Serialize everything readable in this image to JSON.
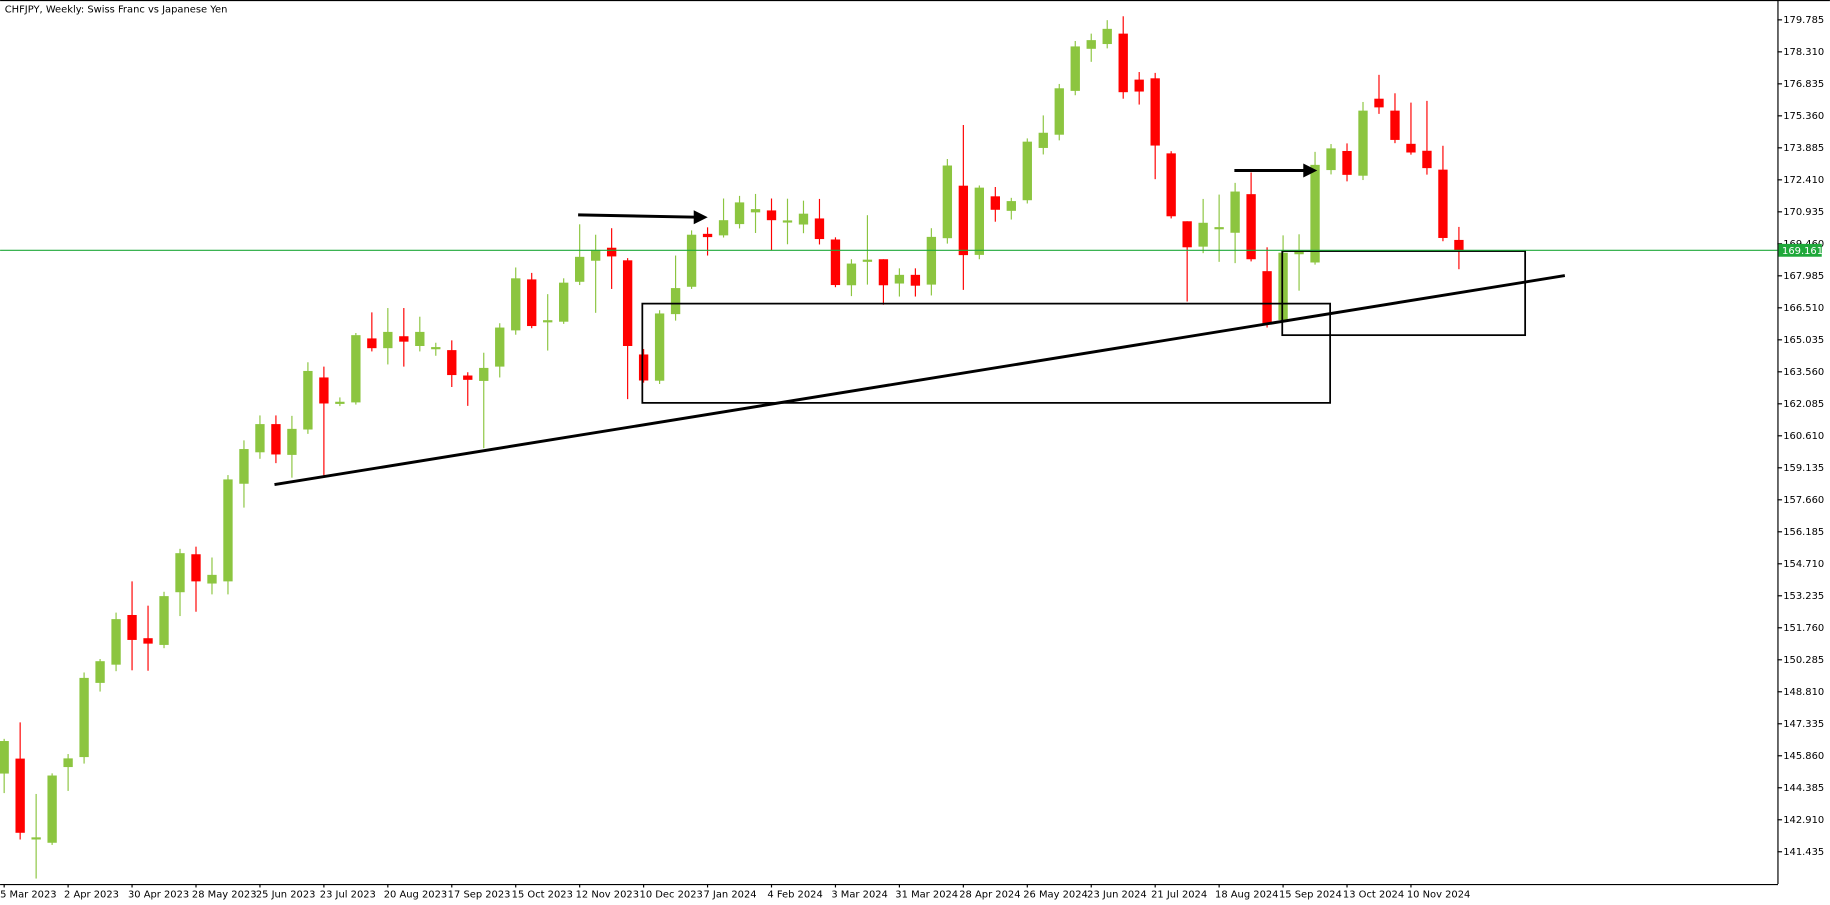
{
  "chart_data": {
    "type": "candlestick",
    "title": "CHFJPY, Weekly:  Swiss Franc vs Japanese Yen",
    "up_color": "#8cc540",
    "down_color": "#ff0000",
    "price_line": 169.161,
    "price_line_color": "#1fa83a",
    "categories": [
      "5 Mar 2023",
      null,
      null,
      null,
      "2 Apr 2023",
      null,
      null,
      null,
      "30 Apr 2023",
      null,
      null,
      null,
      "28 May 2023",
      null,
      null,
      null,
      "25 Jun 2023",
      null,
      null,
      null,
      "23 Jul 2023",
      null,
      null,
      null,
      "20 Aug 2023",
      null,
      null,
      null,
      "17 Sep 2023",
      null,
      null,
      null,
      "15 Oct 2023",
      null,
      null,
      null,
      "12 Nov 2023",
      null,
      null,
      null,
      "10 Dec 2023",
      null,
      null,
      null,
      "7 Jan 2024",
      null,
      null,
      null,
      "4 Feb 2024",
      null,
      null,
      null,
      "3 Mar 2024",
      null,
      null,
      null,
      "31 Mar 2024",
      null,
      null,
      null,
      "28 Apr 2024",
      null,
      null,
      null,
      "26 May 2024",
      null,
      null,
      null,
      "23 Jun 2024",
      null,
      null,
      null,
      "21 Jul 2024",
      null,
      null,
      null,
      "18 Aug 2024",
      null,
      null,
      null,
      "15 Sep 2024",
      null,
      null,
      null,
      "13 Oct 2024",
      null,
      null,
      null,
      "10 Nov 2024",
      null,
      null,
      null
    ],
    "open": [
      145.04,
      145.73,
      142.0,
      141.85,
      145.34,
      145.8,
      149.22,
      150.06,
      152.35,
      151.28,
      150.97,
      153.4,
      155.15,
      153.8,
      153.9,
      158.4,
      159.85,
      161.15,
      159.73,
      160.9,
      163.3,
      162.08,
      162.15,
      165.1,
      164.65,
      165.2,
      164.75,
      164.6,
      164.56,
      163.39,
      163.14,
      163.8,
      165.47,
      167.82,
      165.84,
      165.87,
      167.71,
      168.68,
      169.28,
      168.7,
      164.36,
      163.15,
      166.22,
      167.48,
      169.92,
      169.85,
      170.37,
      170.91,
      171.0,
      170.44,
      170.35,
      170.63,
      169.66,
      167.55,
      168.63,
      168.75,
      167.63,
      168.03,
      167.58,
      169.72,
      172.14,
      168.95,
      171.65,
      170.98,
      171.47,
      173.88,
      174.49,
      176.51,
      178.45,
      178.67,
      179.15,
      177.03,
      177.09,
      173.63,
      170.5,
      169.33,
      170.13,
      169.97,
      171.75,
      168.2,
      165.95,
      168.98,
      168.6,
      172.86,
      173.74,
      172.6,
      176.15,
      175.6,
      174.07,
      173.75,
      172.88,
      169.64
    ],
    "high": [
      146.64,
      147.4,
      144.1,
      145.05,
      145.94,
      149.7,
      150.32,
      152.46,
      153.9,
      152.78,
      153.42,
      155.4,
      155.5,
      155.0,
      158.8,
      160.4,
      161.55,
      161.55,
      161.53,
      164.0,
      163.8,
      162.38,
      165.35,
      166.3,
      166.5,
      166.5,
      166.1,
      164.9,
      165.01,
      163.54,
      164.44,
      165.8,
      168.37,
      168.12,
      167.14,
      167.87,
      170.36,
      169.88,
      170.18,
      168.8,
      164.61,
      166.4,
      168.92,
      170.08,
      170.22,
      171.55,
      171.67,
      171.76,
      171.55,
      171.54,
      171.45,
      171.53,
      169.76,
      168.75,
      170.78,
      168.75,
      168.33,
      168.33,
      170.18,
      173.37,
      174.94,
      172.15,
      172.08,
      171.58,
      174.32,
      175.38,
      176.83,
      178.81,
      179.15,
      179.77,
      179.95,
      177.38,
      177.34,
      173.73,
      170.5,
      171.53,
      171.73,
      172.27,
      172.75,
      169.3,
      169.85,
      169.9,
      173.7,
      174.06,
      174.09,
      176.0,
      177.25,
      176.4,
      175.97,
      176.05,
      173.98,
      170.24
    ],
    "low": [
      144.14,
      142.0,
      140.2,
      141.75,
      144.24,
      145.5,
      148.82,
      149.76,
      149.8,
      149.78,
      150.82,
      152.3,
      152.5,
      153.3,
      153.3,
      157.3,
      159.55,
      159.35,
      158.68,
      160.7,
      158.75,
      161.98,
      162.05,
      164.5,
      163.9,
      163.8,
      164.5,
      164.3,
      162.86,
      161.99,
      160.04,
      163.3,
      165.27,
      165.57,
      164.54,
      165.77,
      167.56,
      166.28,
      167.38,
      162.3,
      163.06,
      163.0,
      165.92,
      167.38,
      168.92,
      169.75,
      170.17,
      169.96,
      169.15,
      169.44,
      169.95,
      169.43,
      167.46,
      167.05,
      167.58,
      166.65,
      167.03,
      167.03,
      167.08,
      169.47,
      167.34,
      168.75,
      170.48,
      170.58,
      171.32,
      173.58,
      174.23,
      176.31,
      177.85,
      178.47,
      176.15,
      175.88,
      172.44,
      170.63,
      166.8,
      169.03,
      168.63,
      168.57,
      168.65,
      165.6,
      165.95,
      167.3,
      168.5,
      172.66,
      172.34,
      172.4,
      175.45,
      174.1,
      173.57,
      172.65,
      169.58,
      168.29
    ],
    "close": [
      146.54,
      142.31,
      142.1,
      144.95,
      145.74,
      149.45,
      150.22,
      152.16,
      151.2,
      151.03,
      153.22,
      155.2,
      153.9,
      154.2,
      158.6,
      160.0,
      161.15,
      159.75,
      160.93,
      163.6,
      162.1,
      162.18,
      165.25,
      164.65,
      165.4,
      164.95,
      165.4,
      164.7,
      163.41,
      163.19,
      163.74,
      165.6,
      167.87,
      165.67,
      165.94,
      167.67,
      168.86,
      169.18,
      168.88,
      164.75,
      163.16,
      166.25,
      167.42,
      169.88,
      169.77,
      170.55,
      171.37,
      171.06,
      170.55,
      170.54,
      170.85,
      169.68,
      167.56,
      168.55,
      168.73,
      167.55,
      168.03,
      167.53,
      169.78,
      173.07,
      168.94,
      172.05,
      171.03,
      171.43,
      174.17,
      174.58,
      176.63,
      178.56,
      178.85,
      179.37,
      176.45,
      176.48,
      173.99,
      170.73,
      169.3,
      170.43,
      170.23,
      171.87,
      168.75,
      165.8,
      169.05,
      169.15,
      173.1,
      173.86,
      172.64,
      175.6,
      175.75,
      174.25,
      173.67,
      172.95,
      169.73,
      169.16
    ],
    "ylim": [
      139.95,
      180.7
    ],
    "yticks": [
      179.785,
      {
        "value": 178.31,
        "label": "178.310"
      },
      176.835,
      {
        "value": 175.36,
        "label": "175.360"
      },
      173.885,
      {
        "value": 172.41,
        "label": "172.410"
      },
      170.935,
      {
        "value": 169.46,
        "label": "169.460"
      },
      167.985,
      {
        "value": 166.51,
        "label": "166.510"
      },
      165.035,
      {
        "value": 163.56,
        "label": "163.560"
      },
      162.085,
      {
        "value": 160.61,
        "label": "160.610"
      },
      159.135,
      {
        "value": 157.66,
        "label": "157.660"
      },
      156.185,
      {
        "value": 154.71,
        "label": "154.710"
      },
      153.235,
      {
        "value": 151.76,
        "label": "151.760"
      },
      150.285,
      {
        "value": 148.81,
        "label": "148.810"
      },
      147.335,
      {
        "value": 145.86,
        "label": "145.860"
      },
      144.385,
      {
        "value": 142.91,
        "label": "142.910"
      },
      141.435
    ]
  }
}
